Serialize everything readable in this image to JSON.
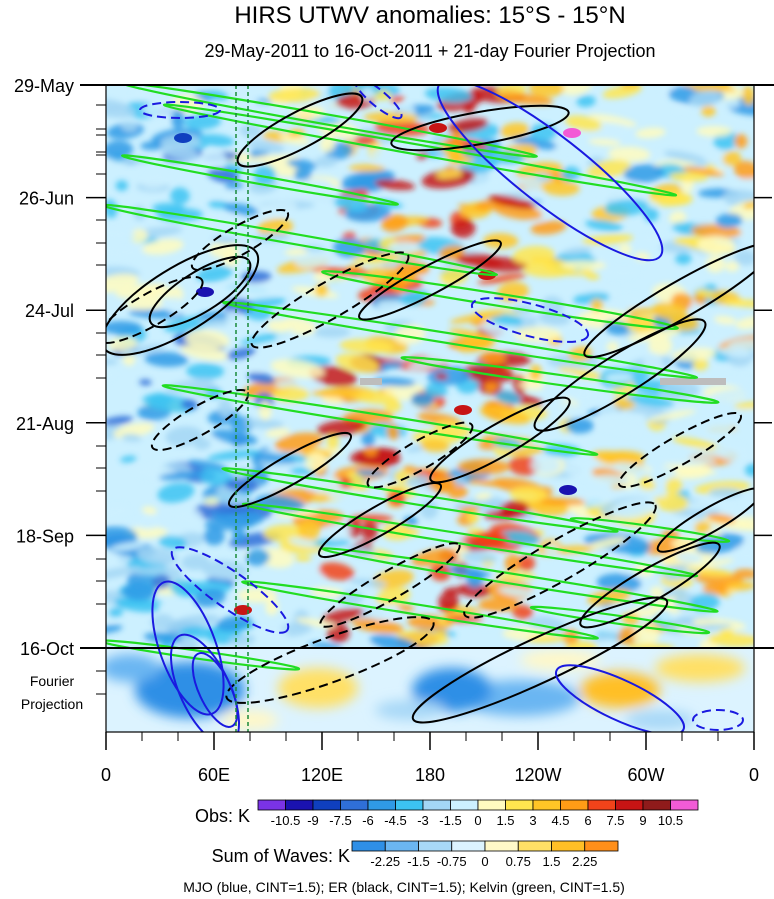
{
  "chart_data": {
    "type": "heatmap",
    "title": "HIRS UTWV anomalies: 15°S - 15°N",
    "subtitle": "29-May-2011 to 16-Oct-2011 + 21-day Fourier Projection",
    "y_ticks": [
      "29-May",
      "26-Jun",
      "24-Jul",
      "21-Aug",
      "18-Sep",
      "16-Oct"
    ],
    "y_projection_label": [
      "Fourier",
      "Projection"
    ],
    "x_ticks": [
      "0",
      "60E",
      "120E",
      "180",
      "120W",
      "60W",
      "0"
    ],
    "obs_colorbar": {
      "label": "Obs: K",
      "ticks": [
        "-10.5",
        "-9",
        "-7.5",
        "-6",
        "-4.5",
        "-3",
        "-1.5",
        "0",
        "1.5",
        "3",
        "4.5",
        "6",
        "7.5",
        "9",
        "10.5"
      ],
      "colors": [
        "#7a33e6",
        "#1a12b0",
        "#0f3fbf",
        "#2f6fd8",
        "#2f9ae6",
        "#3cc3f2",
        "#a3d6f5",
        "#ccf0ff",
        "#fffbc0",
        "#ffe64f",
        "#ffc526",
        "#ff9c16",
        "#f2431a",
        "#c71414",
        "#8f1b1b",
        "#f25bd6"
      ]
    },
    "waves_colorbar": {
      "label": "Sum of Waves: K",
      "ticks": [
        "-2.25",
        "-1.5",
        "-0.75",
        "0",
        "0.75",
        "1.5",
        "2.25"
      ],
      "colors": [
        "#2f8fe6",
        "#6bb6f2",
        "#a8d8f7",
        "#dcf3ff",
        "#fff8c8",
        "#ffe066",
        "#ffbf26",
        "#ff8f1a"
      ]
    },
    "overlays": [
      {
        "name": "MJO",
        "color": "blue",
        "cint": 1.5
      },
      {
        "name": "ER",
        "color": "black",
        "cint": 1.5
      },
      {
        "name": "Kelvin",
        "color": "green",
        "cint": 1.5
      }
    ],
    "footnote": "MJO (blue, CINT=1.5); ER (black, CINT=1.5); Kelvin (green, CINT=1.5)"
  }
}
